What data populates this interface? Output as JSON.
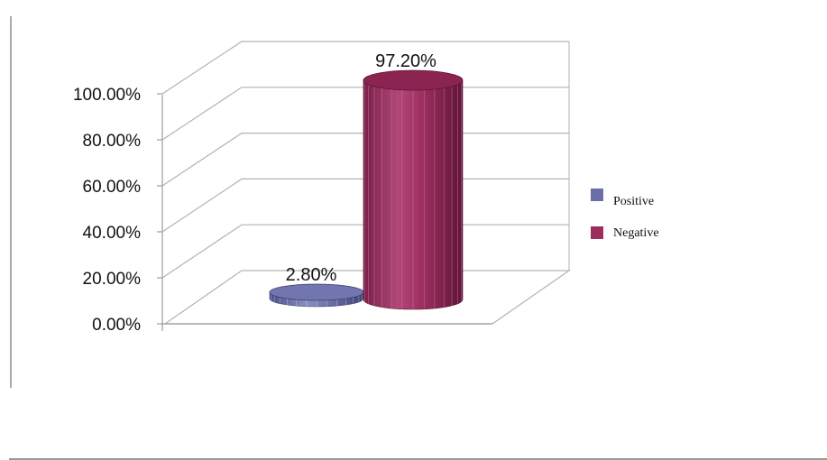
{
  "chart_data": {
    "type": "bar",
    "style": "3d-cylinder",
    "categories": [
      "Positive",
      "Negative"
    ],
    "values": [
      2.8,
      97.2
    ],
    "data_labels": [
      "2.80%",
      "97.20%"
    ],
    "ylim": [
      0,
      100
    ],
    "yticks": [
      "0.00%",
      "20.00%",
      "40.00%",
      "60.00%",
      "80.00%",
      "100.00%"
    ],
    "grid": true,
    "legend": {
      "position": "right",
      "entries": [
        {
          "label": "Positive",
          "color": "#6b6fa6"
        },
        {
          "label": "Negative",
          "color": "#9c2e5e"
        }
      ]
    }
  }
}
